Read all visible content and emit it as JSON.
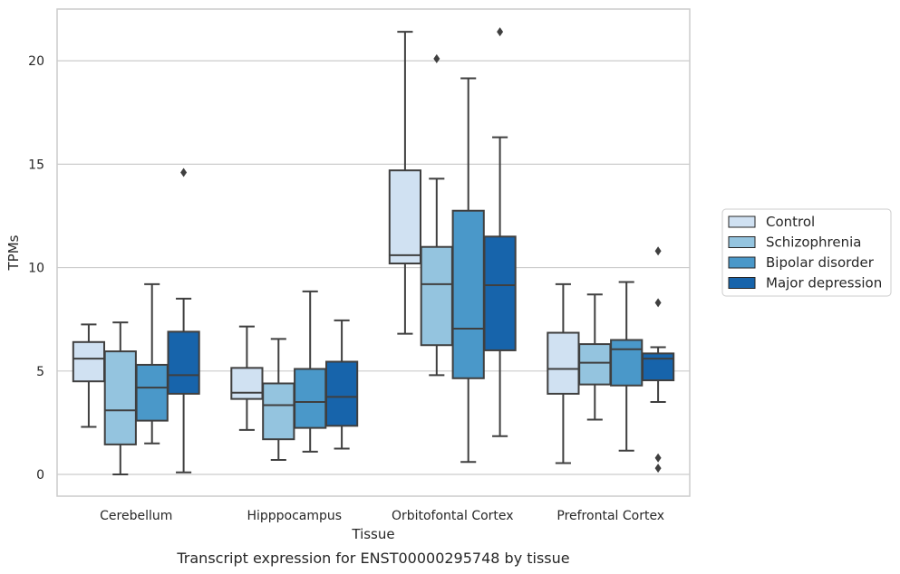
{
  "chart_data": {
    "type": "box",
    "caption": "Transcript expression for ENST00000295748 by tissue",
    "xlabel": "Tissue",
    "ylabel": "TPMs",
    "ylim": [
      -1.05,
      22.5
    ],
    "yticks": [
      0,
      5,
      10,
      15,
      20
    ],
    "grid": "horizontal",
    "legend_position": "right",
    "categories": [
      "Cerebellum",
      "Hipppocampus",
      "Orbitofontal Cortex",
      "Prefrontal Cortex"
    ],
    "series": [
      {
        "name": "Control",
        "color": "#d0e1f2",
        "boxes": [
          {
            "whisker_low": 2.3,
            "q1": 4.5,
            "median": 5.6,
            "q3": 6.4,
            "whisker_high": 7.25,
            "outliers": []
          },
          {
            "whisker_low": 2.15,
            "q1": 3.65,
            "median": 3.95,
            "q3": 5.15,
            "whisker_high": 7.15,
            "outliers": []
          },
          {
            "whisker_low": 6.8,
            "q1": 10.2,
            "median": 10.6,
            "q3": 14.7,
            "whisker_high": 21.4,
            "outliers": []
          },
          {
            "whisker_low": 0.55,
            "q1": 3.9,
            "median": 5.1,
            "q3": 6.85,
            "whisker_high": 9.2,
            "outliers": []
          }
        ]
      },
      {
        "name": "Schizophrenia",
        "color": "#94c4df",
        "boxes": [
          {
            "whisker_low": 0.0,
            "q1": 1.45,
            "median": 3.1,
            "q3": 5.95,
            "whisker_high": 7.35,
            "outliers": []
          },
          {
            "whisker_low": 0.7,
            "q1": 1.7,
            "median": 3.35,
            "q3": 4.4,
            "whisker_high": 6.55,
            "outliers": []
          },
          {
            "whisker_low": 4.8,
            "q1": 6.25,
            "median": 9.2,
            "q3": 11.0,
            "whisker_high": 14.3,
            "outliers": [
              20.1
            ]
          },
          {
            "whisker_low": 2.65,
            "q1": 4.35,
            "median": 5.4,
            "q3": 6.3,
            "whisker_high": 8.7,
            "outliers": []
          }
        ]
      },
      {
        "name": "Bipolar disorder",
        "color": "#4a98c9",
        "boxes": [
          {
            "whisker_low": 1.5,
            "q1": 2.6,
            "median": 4.2,
            "q3": 5.3,
            "whisker_high": 9.2,
            "outliers": []
          },
          {
            "whisker_low": 1.1,
            "q1": 2.25,
            "median": 3.5,
            "q3": 5.1,
            "whisker_high": 8.85,
            "outliers": []
          },
          {
            "whisker_low": 0.6,
            "q1": 4.65,
            "median": 7.05,
            "q3": 12.75,
            "whisker_high": 19.15,
            "outliers": []
          },
          {
            "whisker_low": 1.15,
            "q1": 4.3,
            "median": 6.05,
            "q3": 6.5,
            "whisker_high": 9.3,
            "outliers": []
          }
        ]
      },
      {
        "name": "Major depression",
        "color": "#1764ab",
        "boxes": [
          {
            "whisker_low": 0.1,
            "q1": 3.9,
            "median": 4.8,
            "q3": 6.9,
            "whisker_high": 8.5,
            "outliers": [
              14.6
            ]
          },
          {
            "whisker_low": 1.25,
            "q1": 2.35,
            "median": 3.75,
            "q3": 5.45,
            "whisker_high": 7.45,
            "outliers": []
          },
          {
            "whisker_low": 1.85,
            "q1": 6.0,
            "median": 9.15,
            "q3": 11.5,
            "whisker_high": 16.3,
            "outliers": [
              21.4
            ]
          },
          {
            "whisker_low": 3.5,
            "q1": 4.55,
            "median": 5.6,
            "q3": 5.85,
            "whisker_high": 6.15,
            "outliers": [
              10.8,
              8.3,
              0.8,
              0.3
            ]
          }
        ]
      }
    ]
  }
}
